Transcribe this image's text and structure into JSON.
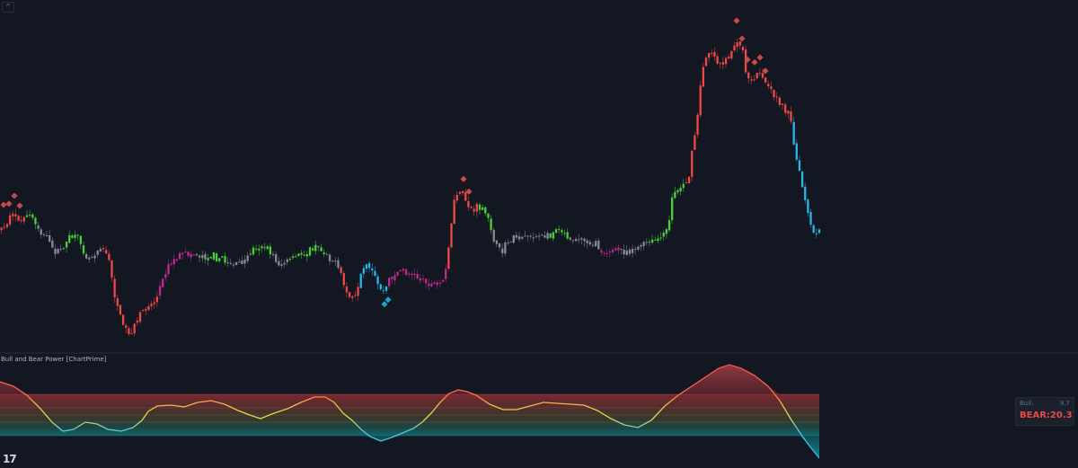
{
  "indicator": {
    "title": "Bull and Bear Power [ChartPrime]"
  },
  "power_table": {
    "bull_label": "Bull:",
    "bull_value": "9.7",
    "bear_label": "BEAR:",
    "bear_value": "20.3"
  },
  "logo_text": "17",
  "collapse_icon": "chevron-up-icon",
  "colors": {
    "background": "#131722",
    "bull_strong": "#4ad03a",
    "bull_weak": "#c02a8e",
    "bear_strong": "#f04848",
    "bear_reversal": "#29b6e8",
    "neutral": "#8a8a93",
    "bear_marker": "#c94a4a",
    "bull_marker": "#1fa3c7"
  },
  "chart_data": [
    {
      "type": "candlestick",
      "title": "",
      "series": [
        {
          "name": "",
          "anchors": [
            [
              0,
              255
            ],
            [
              8,
              245
            ],
            [
              16,
              240
            ],
            [
              24,
              248
            ],
            [
              32,
              238
            ],
            [
              40,
              252
            ],
            [
              48,
              262
            ],
            [
              56,
              275
            ],
            [
              64,
              282
            ],
            [
              72,
              270
            ],
            [
              80,
              262
            ],
            [
              88,
              268
            ],
            [
              96,
              288
            ],
            [
              104,
              282
            ],
            [
              112,
              272
            ],
            [
              120,
              290
            ],
            [
              126,
              325
            ],
            [
              132,
              350
            ],
            [
              138,
              365
            ],
            [
              144,
              372
            ],
            [
              150,
              362
            ],
            [
              156,
              348
            ],
            [
              162,
              340
            ],
            [
              168,
              338
            ],
            [
              174,
              330
            ],
            [
              180,
              308
            ],
            [
              186,
              295
            ],
            [
              192,
              290
            ],
            [
              200,
              285
            ],
            [
              210,
              282
            ],
            [
              220,
              284
            ],
            [
              230,
              285
            ],
            [
              240,
              286
            ],
            [
              250,
              290
            ],
            [
              260,
              295
            ],
            [
              270,
              292
            ],
            [
              280,
              278
            ],
            [
              290,
              272
            ],
            [
              300,
              282
            ],
            [
              310,
              295
            ],
            [
              320,
              290
            ],
            [
              330,
              285
            ],
            [
              340,
              280
            ],
            [
              350,
              275
            ],
            [
              360,
              280
            ],
            [
              370,
              290
            ],
            [
              378,
              305
            ],
            [
              384,
              325
            ],
            [
              390,
              332
            ],
            [
              396,
              330
            ],
            [
              402,
              302
            ],
            [
              408,
              298
            ],
            [
              414,
              305
            ],
            [
              420,
              318
            ],
            [
              426,
              325
            ],
            [
              432,
              312
            ],
            [
              438,
              305
            ],
            [
              446,
              300
            ],
            [
              454,
              304
            ],
            [
              462,
              308
            ],
            [
              470,
              312
            ],
            [
              478,
              316
            ],
            [
              486,
              318
            ],
            [
              492,
              312
            ],
            [
              496,
              290
            ],
            [
              500,
              262
            ],
            [
              504,
              228
            ],
            [
              508,
              215
            ],
            [
              514,
              218
            ],
            [
              520,
              228
            ],
            [
              526,
              235
            ],
            [
              532,
              230
            ],
            [
              538,
              236
            ],
            [
              544,
              248
            ],
            [
              550,
              270
            ],
            [
              556,
              282
            ],
            [
              562,
              272
            ],
            [
              568,
              265
            ],
            [
              578,
              263
            ],
            [
              590,
              262
            ],
            [
              600,
              264
            ],
            [
              610,
              262
            ],
            [
              620,
              252
            ],
            [
              626,
              258
            ],
            [
              632,
              264
            ],
            [
              640,
              266
            ],
            [
              650,
              268
            ],
            [
              660,
              272
            ],
            [
              668,
              278
            ],
            [
              676,
              280
            ],
            [
              686,
              278
            ],
            [
              696,
              279
            ],
            [
              706,
              276
            ],
            [
              716,
              272
            ],
            [
              726,
              268
            ],
            [
              736,
              264
            ],
            [
              742,
              255
            ],
            [
              748,
              215
            ],
            [
              754,
              210
            ],
            [
              760,
              205
            ],
            [
              766,
              195
            ],
            [
              770,
              165
            ],
            [
              776,
              125
            ],
            [
              780,
              82
            ],
            [
              784,
              62
            ],
            [
              790,
              55
            ],
            [
              798,
              70
            ],
            [
              806,
              68
            ],
            [
              814,
              55
            ],
            [
              820,
              45
            ],
            [
              826,
              60
            ],
            [
              830,
              85
            ],
            [
              836,
              95
            ],
            [
              842,
              82
            ],
            [
              848,
              88
            ],
            [
              854,
              100
            ],
            [
              860,
              105
            ],
            [
              866,
              112
            ],
            [
              872,
              120
            ],
            [
              878,
              128
            ],
            [
              882,
              160
            ],
            [
              886,
              180
            ],
            [
              890,
              200
            ],
            [
              894,
              218
            ],
            [
              898,
              238
            ],
            [
              902,
              255
            ],
            [
              906,
              262
            ],
            [
              910,
              258
            ]
          ],
          "color_regimes": [
            [
              0,
              28,
              "bear_strong"
            ],
            [
              28,
              40,
              "bull_strong"
            ],
            [
              40,
              70,
              "neutral"
            ],
            [
              70,
              95,
              "bull_strong"
            ],
            [
              95,
              112,
              "neutral"
            ],
            [
              112,
              175,
              "bear_strong"
            ],
            [
              175,
              215,
              "bull_weak"
            ],
            [
              215,
              230,
              "neutral"
            ],
            [
              230,
              250,
              "bull_strong"
            ],
            [
              250,
              275,
              "neutral"
            ],
            [
              275,
              300,
              "bull_strong"
            ],
            [
              300,
              320,
              "neutral"
            ],
            [
              320,
              360,
              "bull_strong"
            ],
            [
              360,
              378,
              "neutral"
            ],
            [
              378,
              400,
              "bear_strong"
            ],
            [
              400,
              432,
              "bear_reversal"
            ],
            [
              432,
              496,
              "bull_weak"
            ],
            [
              496,
              532,
              "bear_strong"
            ],
            [
              532,
              548,
              "bull_strong"
            ],
            [
              548,
              610,
              "neutral"
            ],
            [
              610,
              632,
              "bull_strong"
            ],
            [
              632,
              668,
              "neutral"
            ],
            [
              668,
              690,
              "bull_weak"
            ],
            [
              690,
              720,
              "neutral"
            ],
            [
              720,
              744,
              "bull_strong"
            ],
            [
              744,
              760,
              "bull_strong"
            ],
            [
              760,
              880,
              "bear_strong"
            ],
            [
              880,
              915,
              "bear_reversal"
            ]
          ],
          "bear_markers_x": [
            4,
            10,
            16,
            22,
            516,
            522,
            820,
            826,
            832,
            840,
            846,
            852
          ],
          "bull_markers_x": [
            428
          ]
        }
      ]
    },
    {
      "type": "area",
      "title": "Bull and Bear Power [ChartPrime]",
      "series": [
        {
          "name": "",
          "points": [
            [
              0,
              425
            ],
            [
              15,
              430
            ],
            [
              30,
              440
            ],
            [
              45,
              455
            ],
            [
              58,
              470
            ],
            [
              70,
              480
            ],
            [
              82,
              478
            ],
            [
              95,
              470
            ],
            [
              108,
              472
            ],
            [
              120,
              478
            ],
            [
              135,
              480
            ],
            [
              148,
              476
            ],
            [
              158,
              468
            ],
            [
              165,
              458
            ],
            [
              175,
              452
            ],
            [
              190,
              451
            ],
            [
              205,
              453
            ],
            [
              220,
              448
            ],
            [
              235,
              446
            ],
            [
              250,
              450
            ],
            [
              265,
              457
            ],
            [
              278,
              462
            ],
            [
              290,
              466
            ],
            [
              305,
              460
            ],
            [
              320,
              455
            ],
            [
              335,
              448
            ],
            [
              350,
              442
            ],
            [
              362,
              442
            ],
            [
              372,
              448
            ],
            [
              382,
              460
            ],
            [
              392,
              468
            ],
            [
              402,
              478
            ],
            [
              412,
              486
            ],
            [
              424,
              491
            ],
            [
              436,
              487
            ],
            [
              448,
              482
            ],
            [
              460,
              477
            ],
            [
              470,
              470
            ],
            [
              480,
              460
            ],
            [
              490,
              448
            ],
            [
              500,
              438
            ],
            [
              510,
              434
            ],
            [
              520,
              436
            ],
            [
              530,
              440
            ],
            [
              545,
              450
            ],
            [
              560,
              456
            ],
            [
              575,
              456
            ],
            [
              590,
              452
            ],
            [
              605,
              448
            ],
            [
              620,
              449
            ],
            [
              635,
              450
            ],
            [
              650,
              451
            ],
            [
              665,
              457
            ],
            [
              680,
              466
            ],
            [
              695,
              473
            ],
            [
              710,
              476
            ],
            [
              725,
              468
            ],
            [
              740,
              452
            ],
            [
              755,
              440
            ],
            [
              770,
              430
            ],
            [
              785,
              420
            ],
            [
              800,
              410
            ],
            [
              812,
              406
            ],
            [
              825,
              410
            ],
            [
              840,
              418
            ],
            [
              855,
              430
            ],
            [
              868,
              446
            ],
            [
              880,
              466
            ],
            [
              890,
              481
            ],
            [
              900,
              495
            ],
            [
              912,
              510
            ]
          ]
        }
      ],
      "bands": {
        "upper_y": 439,
        "lower_y": 485,
        "x_end": 912
      }
    }
  ]
}
